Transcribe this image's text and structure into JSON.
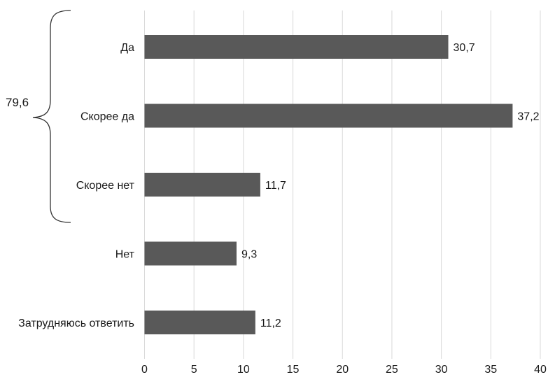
{
  "chart_data": {
    "type": "bar",
    "orientation": "horizontal",
    "categories": [
      "Да",
      "Скорее да",
      "Скорее нет",
      "Нет",
      "Затрудняюсь ответить"
    ],
    "values": [
      30.7,
      37.2,
      11.7,
      9.3,
      11.2
    ],
    "data_labels": [
      "30,7",
      "37,2",
      "11,7",
      "9,3",
      "11,2"
    ],
    "xlim": [
      0,
      40
    ],
    "x_ticks": [
      "0",
      "5",
      "10",
      "15",
      "20",
      "25",
      "30",
      "35",
      "40"
    ],
    "grid": "vertical",
    "bar_color": "#595959",
    "annotation": {
      "type": "brace",
      "spans": [
        "Да",
        "Скорее да",
        "Скорее нет"
      ],
      "label": "79,6"
    }
  }
}
